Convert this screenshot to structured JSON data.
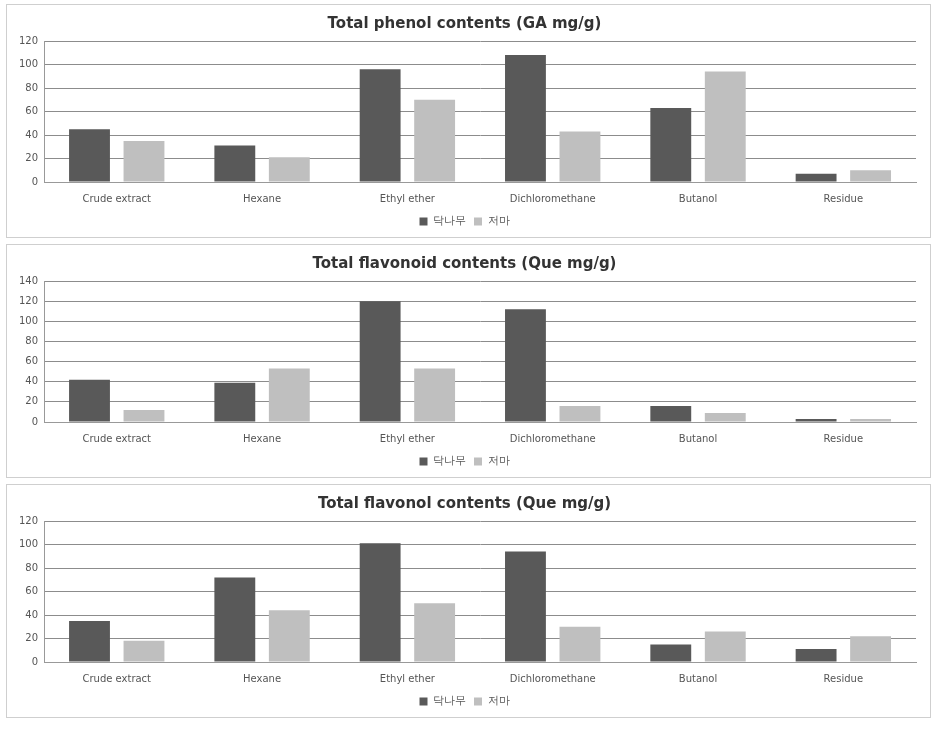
{
  "chart_data": [
    {
      "type": "bar",
      "title": "Total phenol contents (GA mg/g)",
      "categories": [
        "Crude extract",
        "Hexane",
        "Ethyl ether",
        "Dichloromethane",
        "Butanol",
        "Residue"
      ],
      "series": [
        {
          "name": "닥나무",
          "color": "#595959",
          "values": [
            45,
            31,
            96,
            108,
            63,
            7
          ]
        },
        {
          "name": "저마",
          "color": "#bfbfbf",
          "values": [
            35,
            21,
            70,
            43,
            94,
            10
          ]
        }
      ],
      "ylim": [
        0,
        120
      ],
      "yticks": [
        0,
        20,
        40,
        60,
        80,
        100,
        120
      ],
      "grid": true,
      "legend": "bottom"
    },
    {
      "type": "bar",
      "title": "Total flavonoid contents (Que mg/g)",
      "categories": [
        "Crude extract",
        "Hexane",
        "Ethyl ether",
        "Dichloromethane",
        "Butanol",
        "Residue"
      ],
      "series": [
        {
          "name": "닥나무",
          "color": "#595959",
          "values": [
            42,
            39,
            120,
            112,
            16,
            3
          ]
        },
        {
          "name": "저마",
          "color": "#bfbfbf",
          "values": [
            12,
            53,
            53,
            16,
            9,
            3
          ]
        }
      ],
      "ylim": [
        0,
        140
      ],
      "yticks": [
        0,
        20,
        40,
        60,
        80,
        100,
        120,
        140
      ],
      "grid": true,
      "legend": "bottom"
    },
    {
      "type": "bar",
      "title": "Total flavonol contents (Que mg/g)",
      "categories": [
        "Crude extract",
        "Hexane",
        "Ethyl ether",
        "Dichloromethane",
        "Butanol",
        "Residue"
      ],
      "series": [
        {
          "name": "닥나무",
          "color": "#595959",
          "values": [
            35,
            72,
            101,
            94,
            15,
            11
          ]
        },
        {
          "name": "저마",
          "color": "#bfbfbf",
          "values": [
            18,
            44,
            50,
            30,
            26,
            22
          ]
        }
      ],
      "ylim": [
        0,
        120
      ],
      "yticks": [
        0,
        20,
        40,
        60,
        80,
        100,
        120
      ],
      "grid": true,
      "legend": "bottom"
    }
  ]
}
